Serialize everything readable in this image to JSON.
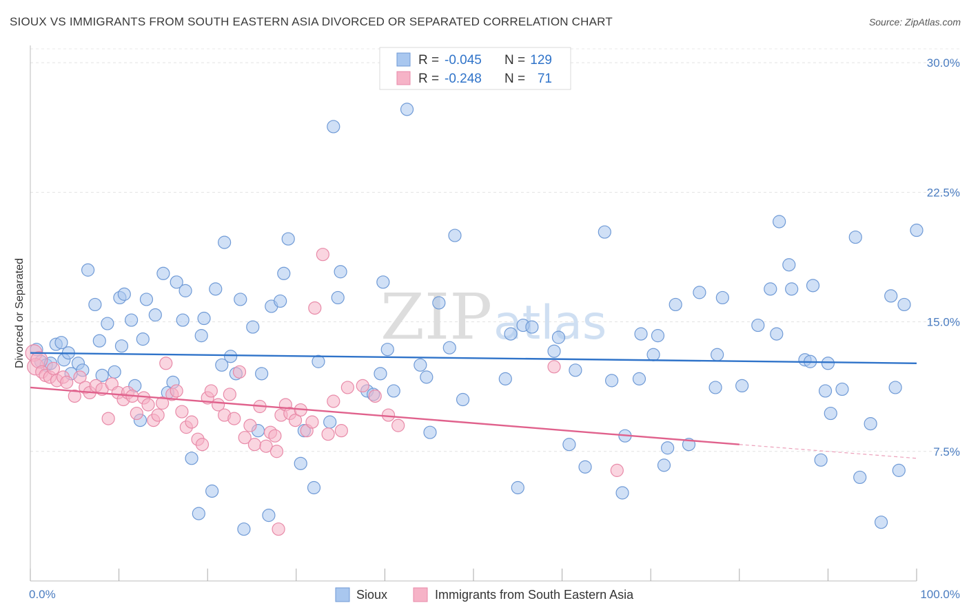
{
  "header": {
    "title": "SIOUX VS IMMIGRANTS FROM SOUTH EASTERN ASIA DIVORCED OR SEPARATED CORRELATION CHART",
    "source": "Source: ZipAtlas.com"
  },
  "watermark": {
    "zip": "ZIP",
    "atlas": "atlas"
  },
  "legend": {
    "rows": [
      {
        "r_label": "R =",
        "r_value": "-0.045",
        "n_label": "N =",
        "n_value": "129",
        "color": "#a9c7ef"
      },
      {
        "r_label": "R =",
        "r_value": "-0.248",
        "n_label": "N =",
        "n_value": "71",
        "color": "#f6b3c7"
      }
    ]
  },
  "chart_data": {
    "type": "scatter",
    "ylabel": "Divorced or Separated",
    "xlim": [
      0,
      100
    ],
    "ylim": [
      0,
      31
    ],
    "x_ticks": [
      0,
      10,
      20,
      30,
      40,
      50,
      60,
      70,
      80,
      90,
      100
    ],
    "x_tick_labels": [
      {
        "value": 0,
        "label": "0.0%"
      },
      {
        "value": 100,
        "label": "100.0%"
      }
    ],
    "y_tick_labels": [
      {
        "value": 7.5,
        "label": "7.5%"
      },
      {
        "value": 15,
        "label": "15.0%"
      },
      {
        "value": 22.5,
        "label": "22.5%"
      },
      {
        "value": 30,
        "label": "30.0%"
      }
    ],
    "grid": "horizontal dashed",
    "series": [
      {
        "name": "Sioux",
        "color": "#a9c7ef",
        "stroke": "#6f9ad6",
        "trend": {
          "x": [
            0,
            100
          ],
          "y": [
            13.2,
            12.6
          ],
          "color": "#2f73c9"
        },
        "points": [
          [
            0.7,
            13.4
          ],
          [
            1.2,
            12.7
          ],
          [
            1.8,
            12.5
          ],
          [
            2.3,
            12.6
          ],
          [
            2.9,
            13.7
          ],
          [
            3.5,
            13.8
          ],
          [
            3.8,
            12.8
          ],
          [
            4.3,
            13.2
          ],
          [
            4.6,
            12.0
          ],
          [
            5.4,
            12.6
          ],
          [
            5.9,
            12.2
          ],
          [
            6.5,
            18.0
          ],
          [
            7.3,
            16.0
          ],
          [
            7.8,
            13.9
          ],
          [
            8.1,
            11.9
          ],
          [
            8.7,
            14.9
          ],
          [
            9.5,
            12.1
          ],
          [
            10.3,
            13.6
          ],
          [
            10.1,
            16.4
          ],
          [
            10.6,
            16.6
          ],
          [
            11.4,
            15.1
          ],
          [
            11.8,
            11.3
          ],
          [
            12.4,
            9.3
          ],
          [
            12.7,
            14.0
          ],
          [
            13.1,
            16.3
          ],
          [
            14.1,
            15.4
          ],
          [
            15.0,
            17.8
          ],
          [
            15.5,
            10.9
          ],
          [
            16.1,
            11.5
          ],
          [
            16.5,
            17.3
          ],
          [
            17.2,
            15.1
          ],
          [
            17.5,
            16.8
          ],
          [
            18.2,
            7.1
          ],
          [
            19.0,
            3.9
          ],
          [
            19.3,
            14.2
          ],
          [
            19.6,
            15.2
          ],
          [
            20.5,
            5.2
          ],
          [
            20.9,
            16.9
          ],
          [
            21.6,
            12.5
          ],
          [
            21.9,
            19.6
          ],
          [
            22.6,
            13.0
          ],
          [
            23.2,
            12.0
          ],
          [
            23.7,
            16.3
          ],
          [
            24.1,
            3.0
          ],
          [
            25.1,
            14.7
          ],
          [
            25.7,
            8.7
          ],
          [
            26.1,
            12.0
          ],
          [
            26.9,
            3.8
          ],
          [
            27.2,
            15.9
          ],
          [
            28.2,
            16.2
          ],
          [
            28.6,
            17.8
          ],
          [
            29.1,
            19.8
          ],
          [
            30.5,
            6.8
          ],
          [
            30.9,
            8.7
          ],
          [
            32.0,
            5.4
          ],
          [
            32.5,
            12.7
          ],
          [
            33.8,
            9.2
          ],
          [
            34.2,
            26.3
          ],
          [
            34.7,
            16.4
          ],
          [
            35.0,
            17.9
          ],
          [
            38.0,
            11.0
          ],
          [
            38.7,
            10.8
          ],
          [
            39.5,
            12.0
          ],
          [
            39.8,
            17.3
          ],
          [
            40.3,
            13.4
          ],
          [
            41.0,
            11.0
          ],
          [
            42.5,
            27.3
          ],
          [
            44.0,
            12.5
          ],
          [
            44.7,
            11.8
          ],
          [
            45.1,
            8.6
          ],
          [
            46.1,
            16.1
          ],
          [
            47.3,
            13.5
          ],
          [
            47.9,
            20.0
          ],
          [
            48.8,
            10.5
          ],
          [
            53.6,
            11.7
          ],
          [
            54.2,
            14.3
          ],
          [
            55.0,
            5.4
          ],
          [
            55.6,
            14.8
          ],
          [
            56.6,
            14.7
          ],
          [
            59.1,
            13.3
          ],
          [
            59.6,
            14.1
          ],
          [
            60.8,
            7.9
          ],
          [
            61.5,
            12.2
          ],
          [
            62.6,
            6.6
          ],
          [
            64.8,
            20.2
          ],
          [
            65.6,
            11.6
          ],
          [
            66.8,
            5.1
          ],
          [
            67.1,
            8.4
          ],
          [
            68.7,
            11.7
          ],
          [
            68.9,
            14.3
          ],
          [
            70.3,
            13.1
          ],
          [
            70.8,
            14.2
          ],
          [
            71.5,
            6.7
          ],
          [
            71.9,
            7.7
          ],
          [
            72.8,
            16.0
          ],
          [
            74.3,
            7.9
          ],
          [
            75.5,
            16.7
          ],
          [
            77.3,
            11.2
          ],
          [
            77.5,
            13.1
          ],
          [
            78.1,
            16.4
          ],
          [
            80.3,
            11.3
          ],
          [
            82.1,
            14.8
          ],
          [
            83.5,
            16.9
          ],
          [
            84.2,
            14.3
          ],
          [
            84.5,
            20.8
          ],
          [
            85.6,
            18.3
          ],
          [
            85.9,
            16.9
          ],
          [
            87.4,
            12.8
          ],
          [
            88.0,
            12.7
          ],
          [
            88.3,
            17.1
          ],
          [
            89.2,
            7.0
          ],
          [
            89.7,
            11.0
          ],
          [
            90.0,
            12.6
          ],
          [
            90.3,
            9.7
          ],
          [
            91.6,
            11.1
          ],
          [
            93.1,
            19.9
          ],
          [
            93.6,
            6.0
          ],
          [
            94.8,
            9.1
          ],
          [
            96.0,
            3.4
          ],
          [
            97.1,
            16.5
          ],
          [
            97.6,
            11.2
          ],
          [
            98.0,
            6.4
          ],
          [
            98.6,
            16.0
          ],
          [
            100.0,
            20.3
          ]
        ]
      },
      {
        "name": "Immigrants from South Eastern Asia",
        "color": "#f6b3c7",
        "stroke": "#e88aa8",
        "trend": {
          "x": [
            0,
            80
          ],
          "y": [
            11.2,
            7.9
          ],
          "dash_to": [
            100,
            7.1
          ],
          "color": "#e0618c"
        },
        "points": [
          [
            0.4,
            13.2
          ],
          [
            0.6,
            12.4
          ],
          [
            1.0,
            12.8
          ],
          [
            1.3,
            12.1
          ],
          [
            1.7,
            11.9
          ],
          [
            2.2,
            11.8
          ],
          [
            2.6,
            12.3
          ],
          [
            3.0,
            11.6
          ],
          [
            3.7,
            11.8
          ],
          [
            4.1,
            11.5
          ],
          [
            5.0,
            10.7
          ],
          [
            5.6,
            11.8
          ],
          [
            6.2,
            11.2
          ],
          [
            6.7,
            10.9
          ],
          [
            7.4,
            11.3
          ],
          [
            8.1,
            11.1
          ],
          [
            8.8,
            9.4
          ],
          [
            9.2,
            11.4
          ],
          [
            9.9,
            10.9
          ],
          [
            10.5,
            10.5
          ],
          [
            11.0,
            10.9
          ],
          [
            11.5,
            10.7
          ],
          [
            12.0,
            9.7
          ],
          [
            12.8,
            10.6
          ],
          [
            13.3,
            10.2
          ],
          [
            13.9,
            9.3
          ],
          [
            14.4,
            9.6
          ],
          [
            14.9,
            10.3
          ],
          [
            15.3,
            12.6
          ],
          [
            16.0,
            10.8
          ],
          [
            16.5,
            11.0
          ],
          [
            17.1,
            9.8
          ],
          [
            17.6,
            8.9
          ],
          [
            18.2,
            9.2
          ],
          [
            18.9,
            8.2
          ],
          [
            19.4,
            7.9
          ],
          [
            20.0,
            10.6
          ],
          [
            20.4,
            11.0
          ],
          [
            21.2,
            10.2
          ],
          [
            21.9,
            9.6
          ],
          [
            22.5,
            10.8
          ],
          [
            23.0,
            9.4
          ],
          [
            23.6,
            12.1
          ],
          [
            24.2,
            8.3
          ],
          [
            24.8,
            9.0
          ],
          [
            25.3,
            7.9
          ],
          [
            25.9,
            10.1
          ],
          [
            26.6,
            7.8
          ],
          [
            27.1,
            8.6
          ],
          [
            27.6,
            8.4
          ],
          [
            28.3,
            9.6
          ],
          [
            28.8,
            10.2
          ],
          [
            29.3,
            9.7
          ],
          [
            29.9,
            9.3
          ],
          [
            30.5,
            9.9
          ],
          [
            31.2,
            8.7
          ],
          [
            31.8,
            9.2
          ],
          [
            32.1,
            15.8
          ],
          [
            33.0,
            18.9
          ],
          [
            33.6,
            8.5
          ],
          [
            34.2,
            10.4
          ],
          [
            35.1,
            8.7
          ],
          [
            35.8,
            11.2
          ],
          [
            27.8,
            7.5
          ],
          [
            28.0,
            3.0
          ],
          [
            37.5,
            11.3
          ],
          [
            38.9,
            10.7
          ],
          [
            40.4,
            9.6
          ],
          [
            41.5,
            9.0
          ],
          [
            59.1,
            12.4
          ],
          [
            66.2,
            6.4
          ]
        ]
      }
    ]
  },
  "bottom_legend": [
    {
      "label": "Sioux",
      "color": "#a9c7ef"
    },
    {
      "label": "Immigrants from South Eastern Asia",
      "color": "#f6b3c7"
    }
  ]
}
